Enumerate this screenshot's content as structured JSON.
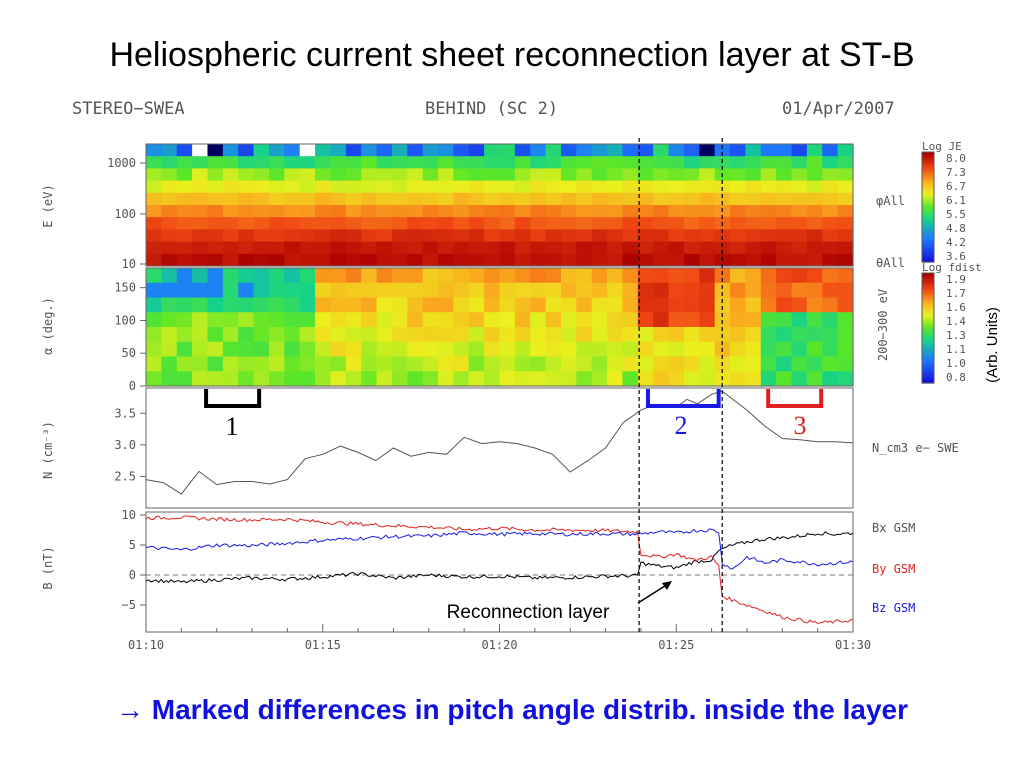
{
  "slide": {
    "title": "Heliospheric current sheet reconnection layer at ST-B",
    "conclusion": "→ Marked differences in pitch angle distrib. inside the layer"
  },
  "header": {
    "instrument": "STEREO−SWEA",
    "spacecraft": "BEHIND (SC 2)",
    "date": "01/Apr/2007"
  },
  "colors": {
    "bx": "#000000",
    "by": "#e02020",
    "bz": "#1a1ae6",
    "bracket_1": "#000000",
    "bracket_2": "#1a1ae6",
    "bracket_3": "#e02020",
    "conclusion": "#1010e0"
  },
  "annotations": {
    "bracket_1": "1",
    "bracket_2": "2",
    "bracket_3": "3",
    "reconnection": "Reconnection layer",
    "arb_units": "(Arb. Units)"
  },
  "chart_data": [
    {
      "type": "heatmap",
      "panel": "energy-spectrogram",
      "ylabel": "E (eV)",
      "yscale": "log",
      "yticks": [
        "1000",
        "100",
        "10"
      ],
      "right_label": "φAll",
      "right_label_2": "θAll",
      "colorbar": {
        "title": "Log JE",
        "ticks": [
          "8.0",
          "7.3",
          "6.7",
          "6.1",
          "5.5",
          "4.8",
          "4.2",
          "3.6"
        ]
      }
    },
    {
      "type": "heatmap",
      "panel": "pitch-angle",
      "ylabel": "α (deg.)",
      "ylim": [
        0,
        180
      ],
      "yticks": [
        "150",
        "100",
        "50",
        "0"
      ],
      "right_label": "200−300 eV",
      "colorbar": {
        "title": "Log fdist",
        "ticks": [
          "1.9",
          "1.7",
          "1.6",
          "1.4",
          "1.3",
          "1.1",
          "1.0",
          "0.8"
        ]
      }
    },
    {
      "type": "line",
      "panel": "density",
      "ylabel": "N (cm⁻³)",
      "ylim": [
        2.0,
        3.9
      ],
      "yticks": [
        "3.5",
        "3.0",
        "2.5"
      ],
      "series": [
        {
          "name": "N_cm3  e− SWE",
          "x": [
            70.0,
            70.5,
            71.0,
            71.5,
            72.0,
            72.5,
            73.0,
            73.5,
            74.0,
            74.5,
            75.0,
            75.5,
            76.0,
            76.5,
            77.0,
            77.5,
            78.0,
            78.5,
            79.0,
            79.5,
            80.0,
            80.5,
            81.0,
            81.5,
            82.0,
            82.5,
            83.0,
            83.5,
            84.0,
            84.3,
            84.7,
            85.0,
            85.3,
            85.6,
            86.0,
            86.3,
            86.6,
            87.0,
            87.5,
            88.0,
            88.5,
            89.0,
            89.5,
            90.0
          ],
          "y": [
            2.45,
            2.4,
            2.22,
            2.58,
            2.37,
            2.42,
            2.42,
            2.38,
            2.45,
            2.78,
            2.85,
            2.98,
            2.88,
            2.75,
            2.95,
            2.82,
            2.88,
            2.85,
            3.12,
            3.02,
            3.05,
            3.02,
            2.95,
            2.85,
            2.57,
            2.75,
            2.95,
            3.35,
            3.55,
            3.62,
            3.6,
            3.6,
            3.72,
            3.65,
            3.8,
            3.85,
            3.72,
            3.55,
            3.3,
            3.1,
            3.08,
            3.05,
            3.05,
            3.03
          ]
        }
      ]
    },
    {
      "type": "line",
      "panel": "magnetic-field",
      "ylabel": "B (nT)",
      "ylim": [
        -9.5,
        10.5
      ],
      "yticks": [
        "10",
        "5",
        "0",
        "−5"
      ],
      "xlabel": "",
      "xticks": [
        "01:10",
        "01:15",
        "01:20",
        "01:25",
        "01:30"
      ],
      "xlim_minutes": [
        70,
        90
      ],
      "series": [
        {
          "name": "Bx GSM",
          "x": [
            70.0,
            71.0,
            72.0,
            73.0,
            74.0,
            75.0,
            76.0,
            77.0,
            78.0,
            79.0,
            80.0,
            81.0,
            82.0,
            83.0,
            83.9,
            84.0,
            84.5,
            85.0,
            85.5,
            86.0,
            86.2,
            86.5,
            87.0,
            87.5,
            88.0,
            88.5,
            89.0,
            89.5,
            90.0
          ],
          "y": [
            -0.8,
            -1.2,
            -0.8,
            -0.5,
            -0.7,
            -0.3,
            0.2,
            -0.5,
            0.0,
            -0.3,
            -0.2,
            -0.5,
            -0.4,
            -0.2,
            -0.1,
            2.0,
            1.5,
            1.2,
            2.2,
            2.5,
            4.0,
            4.8,
            5.5,
            6.0,
            6.2,
            6.5,
            7.0,
            6.8,
            7.0
          ]
        },
        {
          "name": "By GSM",
          "x": [
            70.0,
            71.0,
            72.0,
            73.0,
            74.0,
            75.0,
            76.0,
            77.0,
            78.0,
            79.0,
            80.0,
            81.0,
            82.0,
            83.0,
            83.9,
            84.0,
            84.5,
            85.0,
            85.5,
            86.0,
            86.2,
            86.3,
            86.5,
            87.0,
            87.5,
            88.0,
            88.5,
            89.0,
            89.5,
            90.0
          ],
          "y": [
            9.5,
            9.6,
            9.3,
            9.2,
            9.3,
            8.8,
            8.5,
            8.2,
            8.0,
            7.6,
            7.8,
            7.5,
            7.5,
            7.4,
            7.2,
            3.5,
            3.0,
            3.5,
            2.5,
            3.0,
            1.5,
            -3.5,
            -4.0,
            -5.0,
            -6.0,
            -7.0,
            -7.5,
            -8.0,
            -7.8,
            -7.5
          ]
        },
        {
          "name": "Bz GSM",
          "x": [
            70.0,
            71.0,
            72.0,
            73.0,
            74.0,
            75.0,
            76.0,
            77.0,
            78.0,
            79.0,
            80.0,
            81.0,
            82.0,
            83.0,
            83.9,
            84.5,
            85.0,
            85.5,
            86.0,
            86.2,
            86.3,
            86.6,
            87.0,
            87.5,
            88.0,
            88.5,
            89.0,
            89.5,
            90.0
          ],
          "y": [
            4.6,
            4.2,
            5.0,
            4.9,
            5.3,
            5.8,
            6.1,
            6.4,
            6.5,
            7.0,
            6.8,
            6.9,
            6.8,
            6.9,
            6.8,
            7.2,
            7.0,
            7.4,
            7.5,
            7.2,
            2.0,
            1.0,
            3.0,
            2.0,
            2.5,
            2.2,
            1.8,
            2.0,
            2.2
          ]
        }
      ]
    }
  ]
}
